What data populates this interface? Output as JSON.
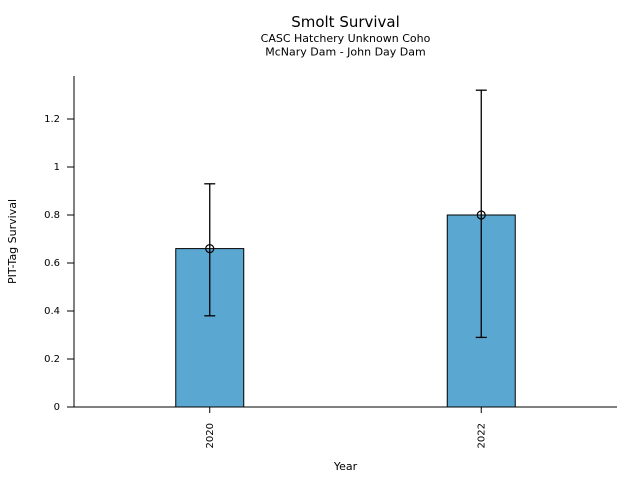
{
  "chart_data": {
    "type": "bar",
    "title": "Smolt Survival",
    "subtitle": [
      "CASC Hatchery Unknown Coho",
      "McNary Dam - John Day Dam"
    ],
    "xlabel": "Year",
    "ylabel": "PIT-Tag Survival",
    "categories": [
      "2020",
      "2022"
    ],
    "values": [
      0.66,
      0.8
    ],
    "error_low": [
      0.38,
      0.29
    ],
    "error_high": [
      0.93,
      1.32
    ],
    "yticks": [
      0,
      0.2,
      0.4,
      0.6,
      0.8,
      1,
      1.2
    ],
    "ylim": [
      0,
      1.38
    ],
    "grid": false,
    "legend": "none",
    "bar_color": "#5AA7D1",
    "bar_edge_color": "#000000",
    "error_color": "#000000",
    "marker": "open-circle"
  }
}
